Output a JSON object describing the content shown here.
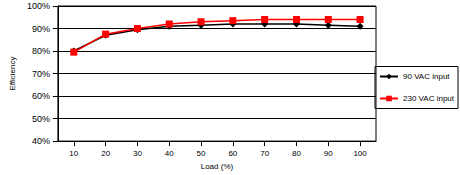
{
  "chart_data": {
    "type": "line",
    "x_label": "Load (%)",
    "y_label": "Efficiency",
    "categories": [
      "10",
      "20",
      "30",
      "40",
      "50",
      "60",
      "70",
      "80",
      "90",
      "100"
    ],
    "series": [
      {
        "name": "90 VAC input",
        "color": "#000000",
        "marker": "diamond",
        "line_style": "solid",
        "values": [
          80,
          87,
          89.5,
          91,
          91.5,
          92,
          92,
          92,
          91.5,
          91
        ]
      },
      {
        "name": "230 VAC input",
        "color": "#ff0000",
        "marker": "square",
        "line_style": "solid",
        "values": [
          79.5,
          87.5,
          90,
          92,
          93,
          93.5,
          94,
          94,
          94,
          94
        ]
      }
    ],
    "ylim": [
      40,
      100
    ],
    "yticks": [
      {
        "value": 40,
        "label": "40%"
      },
      {
        "value": 50,
        "label": "50%"
      },
      {
        "value": 60,
        "label": "60%"
      },
      {
        "value": 70,
        "label": "70%"
      },
      {
        "value": 80,
        "label": "80%"
      },
      {
        "value": 90,
        "label": "90%"
      },
      {
        "value": 100,
        "label": "100%"
      }
    ],
    "grid": true,
    "legend": "right"
  }
}
